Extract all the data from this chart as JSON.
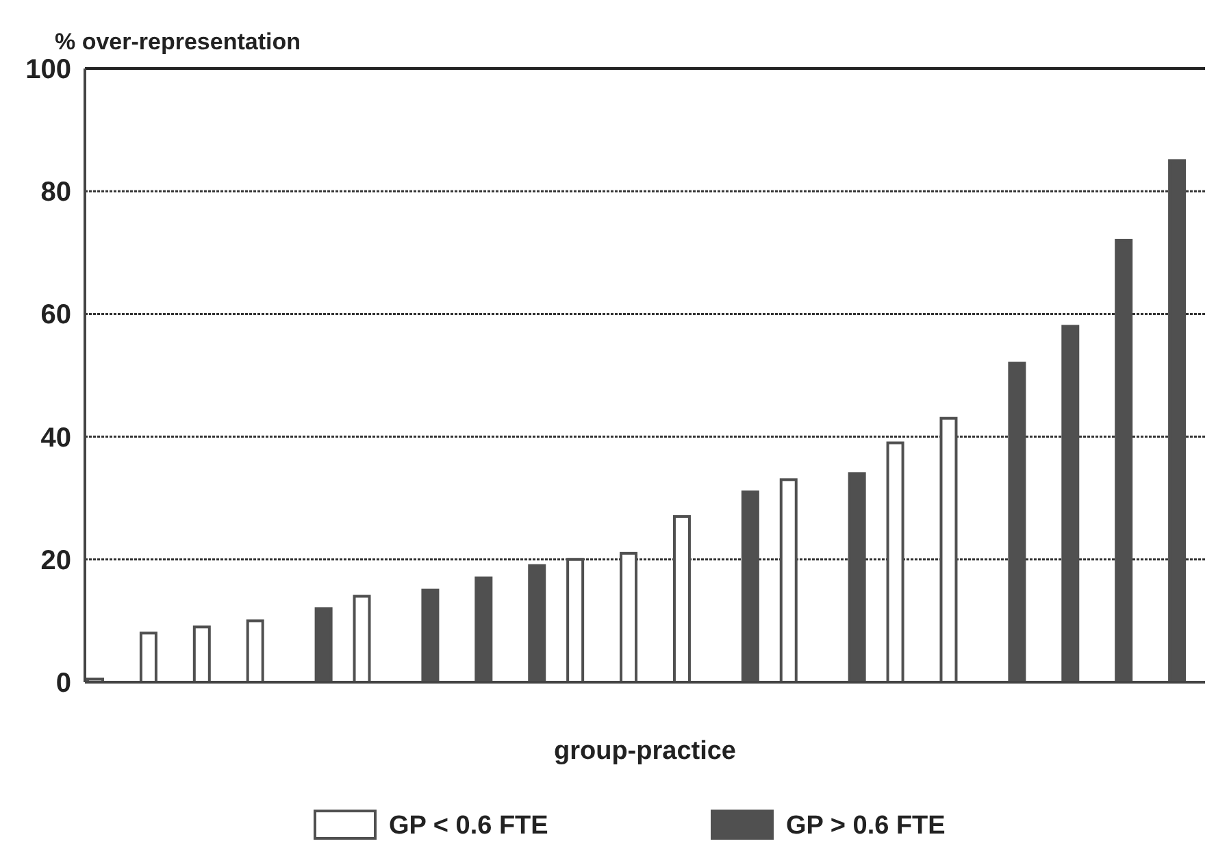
{
  "chart_data": {
    "type": "bar",
    "ylabel": "% over-representation",
    "xlabel": "group-practice",
    "categories": [
      null,
      null,
      null,
      null,
      null,
      null,
      null,
      null,
      null,
      null,
      null,
      null,
      null,
      null,
      null,
      null,
      null,
      null,
      null,
      null,
      null
    ],
    "series": [
      {
        "name": "GP < 0.6 FTE",
        "color": "#ffffff",
        "values": [
          0.5,
          8,
          9,
          10,
          null,
          14,
          null,
          null,
          null,
          20,
          21,
          27,
          null,
          33,
          null,
          39,
          43,
          null,
          null,
          null,
          null
        ]
      },
      {
        "name": "GP > 0.6 FTE",
        "color": "#505050",
        "values": [
          null,
          null,
          null,
          null,
          12,
          null,
          15,
          17,
          19,
          null,
          null,
          null,
          31,
          null,
          34,
          null,
          null,
          52,
          58,
          72,
          85
        ]
      }
    ],
    "ylim": [
      0,
      100
    ],
    "yticks": [
      0,
      20,
      40,
      60,
      80,
      100
    ],
    "grid": "y",
    "legend": "bottom"
  }
}
